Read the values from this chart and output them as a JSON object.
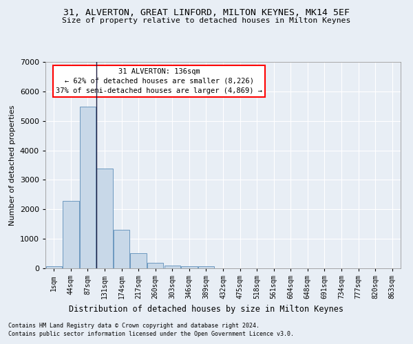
{
  "title1": "31, ALVERTON, GREAT LINFORD, MILTON KEYNES, MK14 5EF",
  "title2": "Size of property relative to detached houses in Milton Keynes",
  "xlabel": "Distribution of detached houses by size in Milton Keynes",
  "ylabel": "Number of detached properties",
  "footnote1": "Contains HM Land Registry data © Crown copyright and database right 2024.",
  "footnote2": "Contains public sector information licensed under the Open Government Licence v3.0.",
  "annotation_line1": "31 ALVERTON: 136sqm",
  "annotation_line2": "← 62% of detached houses are smaller (8,226)",
  "annotation_line3": "37% of semi-detached houses are larger (4,869) →",
  "bar_labels": [
    "1sqm",
    "44sqm",
    "87sqm",
    "131sqm",
    "174sqm",
    "217sqm",
    "260sqm",
    "303sqm",
    "346sqm",
    "389sqm",
    "432sqm",
    "475sqm",
    "518sqm",
    "561sqm",
    "604sqm",
    "648sqm",
    "691sqm",
    "734sqm",
    "777sqm",
    "820sqm",
    "863sqm"
  ],
  "bar_values": [
    70,
    2280,
    5480,
    3380,
    1310,
    510,
    185,
    100,
    65,
    60,
    0,
    0,
    0,
    0,
    0,
    0,
    0,
    0,
    0,
    0,
    0
  ],
  "bar_color": "#c8d8e8",
  "bar_edge_color": "#5b8db8",
  "ylim": [
    0,
    7000
  ],
  "yticks": [
    0,
    1000,
    2000,
    3000,
    4000,
    5000,
    6000,
    7000
  ],
  "bg_color": "#e8eef5",
  "annotation_box_color": "white",
  "annotation_box_edge": "red",
  "vline_color": "#222244",
  "grid_color": "white"
}
